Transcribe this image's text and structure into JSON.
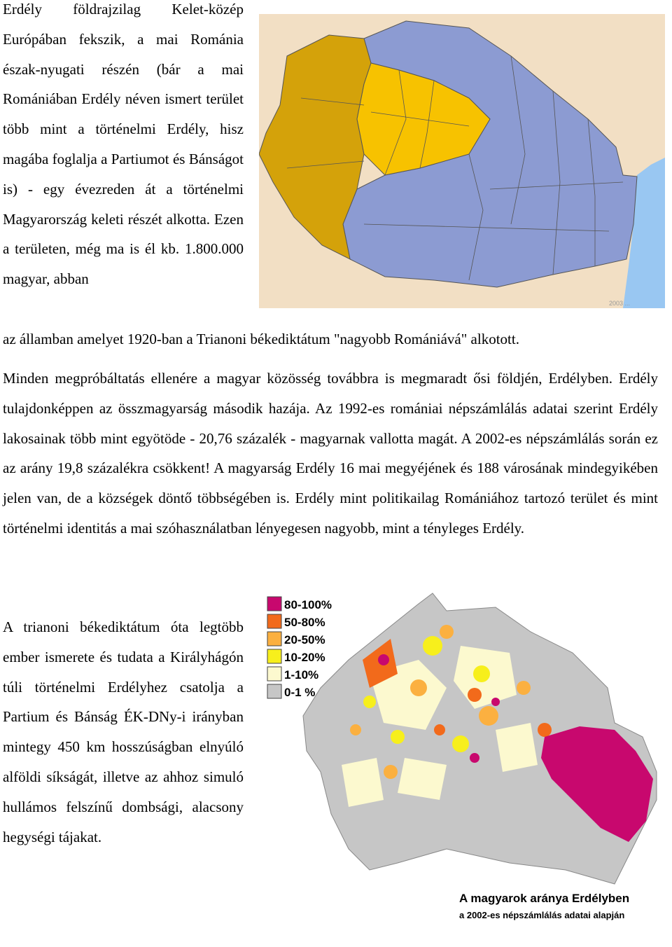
{
  "paragraphs": {
    "p1": "Erdély földrajzilag Kelet-közép Európában fekszik, a mai Románia észak-nyugati részén (bár a mai Romániában Erdély néven ismert terület több mint a történelmi Erdély, hisz magába foglalja a Partiumot és Bánságot is) - egy évezreden át a történelmi Magyarország keleti részét alkotta. Ezen a területen, még ma is él kb. 1.800.000 magyar, abban",
    "p1b": "az államban amelyet 1920-ban a Trianoni békediktátum \"nagyobb Romániává\" alkotott.",
    "p2": "Minden megpróbáltatás ellenére a magyar közösség továbbra is megmaradt ősi földjén, Erdélyben. Erdély tulajdonképpen az összmagyarság második hazája. Az 1992-es romániai népszámlálás adatai szerint Erdély lakosainak több mint egyötöde - 20,76 százalék - magyarnak vallotta magát. A 2002-es népszámlálás során ez az arány 19,8 százalékra csökkent! A magyarság Erdély 16 mai megyéjének és 188 városának mindegyikében jelen van, de a községek döntő többségében is. Erdély mint politikailag Romániához tartozó terület és mint történelmi identitás a mai szóhasználatban lényegesen nagyobb, mint a tényleges Erdély.",
    "p3": "A trianoni békediktátum óta legtöbb ember ismerete és tudata a Királyhágón túli történelmi Erdélyhez csatolja a Partium és Bánság ÉK-DNy-i irányban mintegy 450 km hosszúságban elnyúló alföldi síkságát, illetve az ahhoz simuló hullámos felszínű dombsági, alacsony hegységi tájakat."
  },
  "map1": {
    "credit": "2003 ...",
    "colors": {
      "partium": "#d4a20a",
      "transylvania": "#f7c200",
      "romania": "#8c9bd2",
      "sea": "#99c7f2",
      "neighbors": "#f2dfc4"
    }
  },
  "map2": {
    "legend": [
      {
        "label": "80-100%",
        "color": "#c8086e"
      },
      {
        "label": "50-80%",
        "color": "#f26a1b"
      },
      {
        "label": "20-50%",
        "color": "#fbb040"
      },
      {
        "label": "10-20%",
        "color": "#f7ef1c"
      },
      {
        "label": "1-10%",
        "color": "#fcf9cf"
      },
      {
        "label": "0-1  %",
        "color": "#c6c6c6"
      }
    ],
    "caption_title": "A magyarok aránya Erdélyben",
    "caption_subtitle": "a 2002-es népszámlálás adatai alapján"
  }
}
